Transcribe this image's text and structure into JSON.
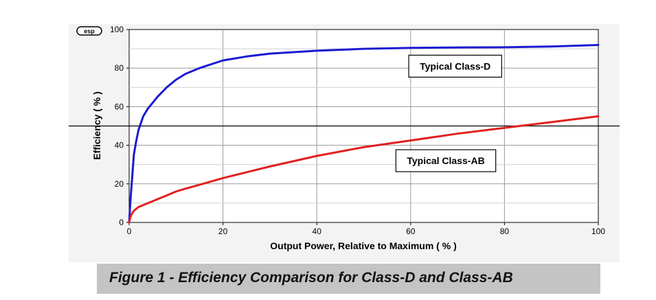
{
  "logo": {
    "text": "esp"
  },
  "chart_data": {
    "type": "line",
    "title": "",
    "xlabel": "Output Power, Relative to Maximum ( % )",
    "ylabel": "Efficiency ( % )",
    "xlim": [
      0,
      100
    ],
    "ylim": [
      0,
      100
    ],
    "xticks": [
      0,
      20,
      40,
      60,
      80,
      100
    ],
    "yticks": [
      0,
      20,
      40,
      60,
      80,
      100
    ],
    "grid": true,
    "reference_line_y": 50,
    "series": [
      {
        "name": "Typical Class-D",
        "color": "#1a1ad0",
        "x": [
          0,
          0.3,
          0.7,
          1,
          1.5,
          2,
          3,
          4,
          5,
          6,
          8,
          10,
          12,
          15,
          20,
          25,
          30,
          40,
          50,
          60,
          70,
          80,
          90,
          100
        ],
        "y": [
          0,
          12,
          25,
          35,
          42,
          48,
          55,
          59,
          62,
          65,
          70,
          74,
          77,
          80,
          84,
          86,
          87.5,
          89,
          90,
          90.5,
          90.7,
          90.8,
          91.2,
          92
        ]
      },
      {
        "name": "Typical Class-AB",
        "color": "#e02020",
        "x": [
          0,
          0.3,
          0.7,
          1,
          1.5,
          2,
          3,
          4,
          5,
          6,
          8,
          10,
          12,
          15,
          20,
          25,
          30,
          40,
          50,
          60,
          70,
          80,
          90,
          100
        ],
        "y": [
          0,
          3,
          5,
          6,
          7,
          8,
          9,
          10,
          11,
          12,
          14,
          16,
          17.5,
          19.5,
          23,
          26,
          29,
          34.5,
          39,
          42.5,
          46,
          49,
          52,
          55
        ]
      }
    ],
    "annotations": [
      {
        "text": "Typical Class-D",
        "at_x": 69.5,
        "at_y": 81
      },
      {
        "text": "Typical Class-AB",
        "at_x": 67.5,
        "at_y": 32
      }
    ]
  },
  "caption": {
    "text": "Figure 1 - Efficiency Comparison for Class-D and Class-AB"
  }
}
